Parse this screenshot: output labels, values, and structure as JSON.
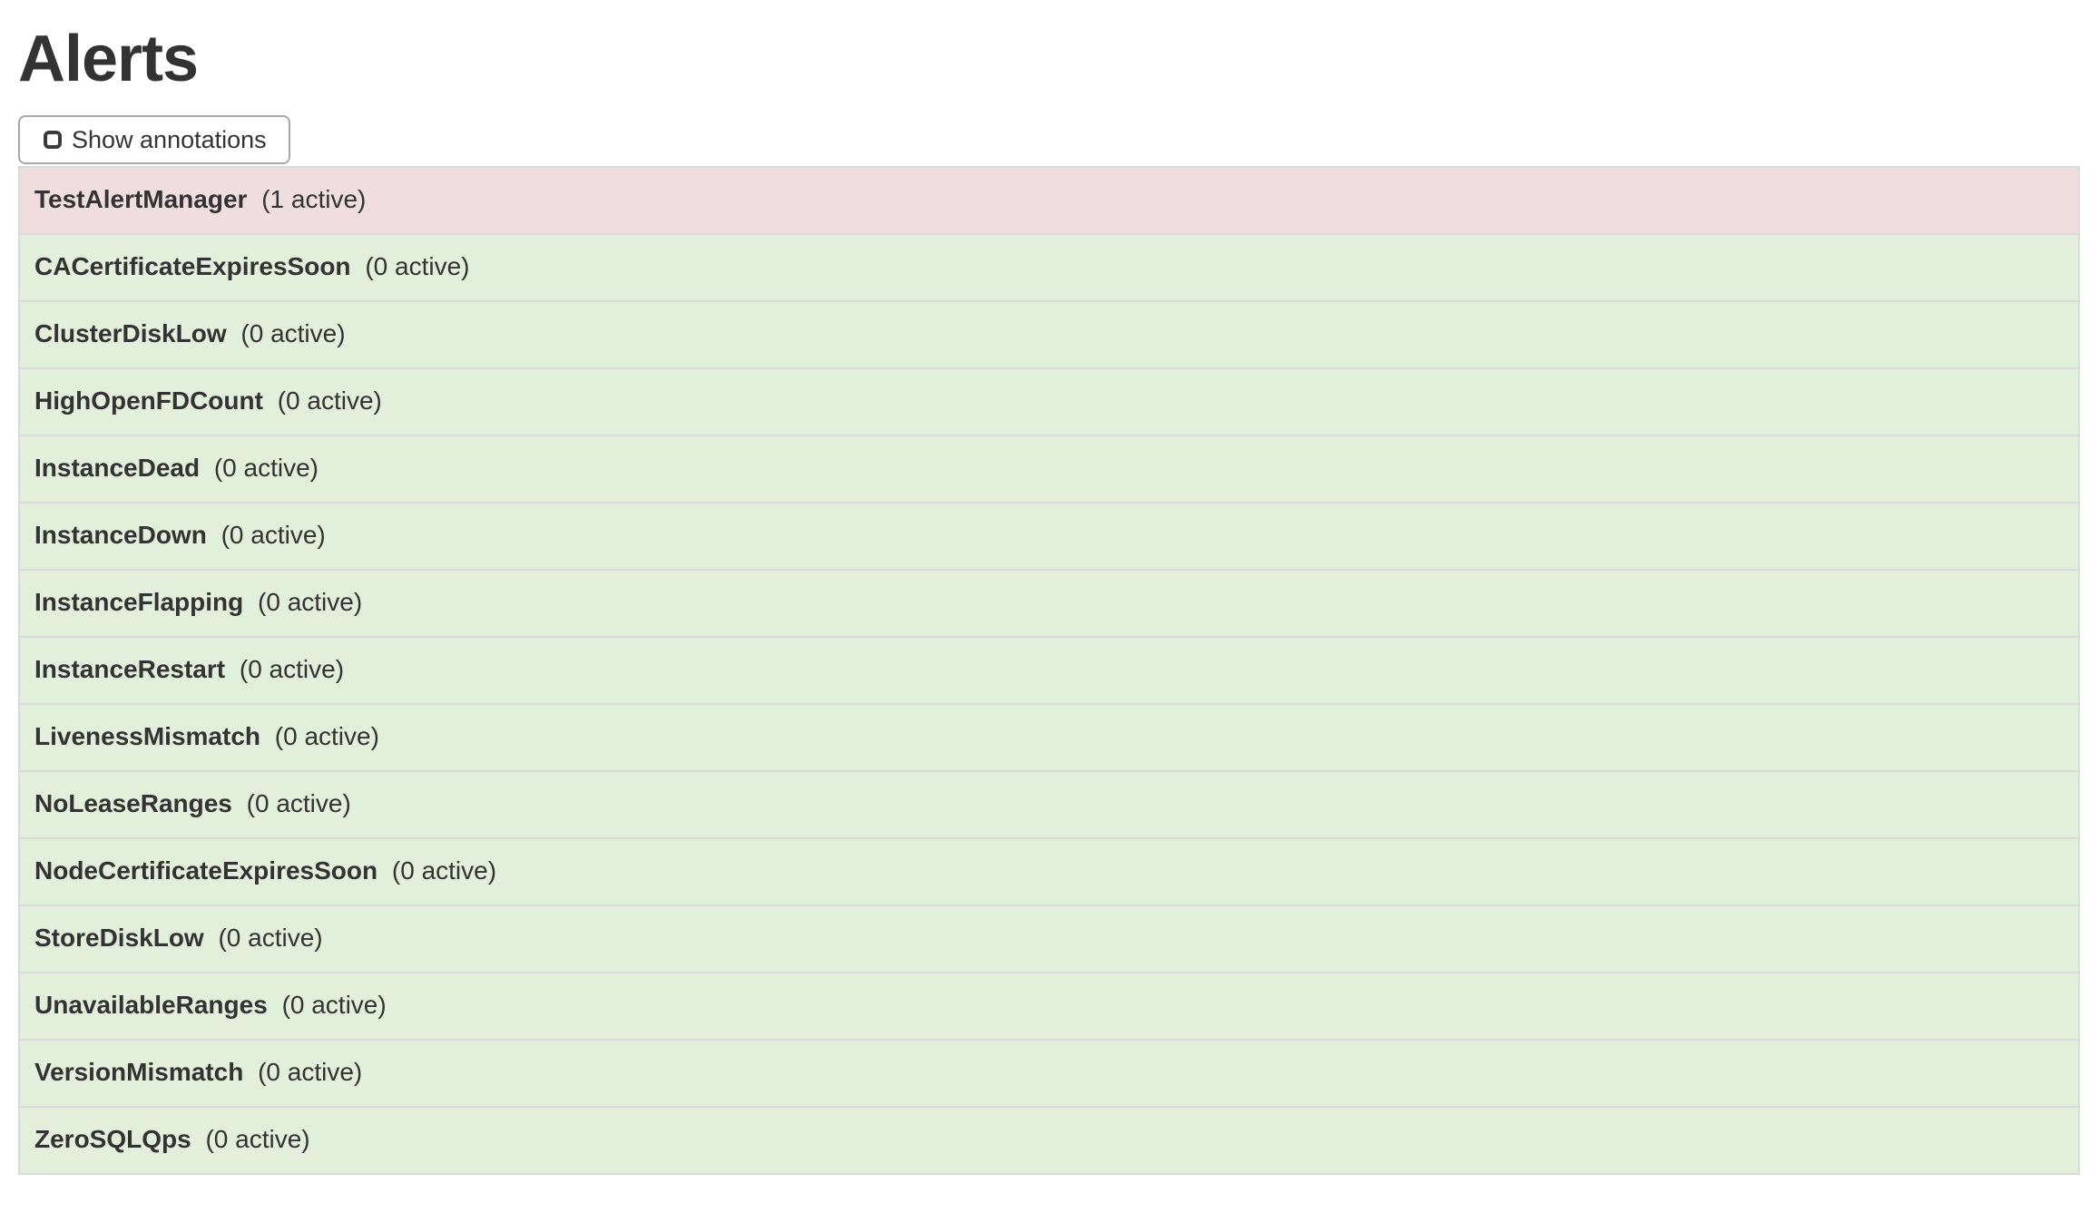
{
  "page": {
    "title": "Alerts"
  },
  "toolbar": {
    "show_annotations": {
      "label": "Show annotations",
      "checked": false,
      "icon": "checkbox-unchecked-icon"
    }
  },
  "alerts": [
    {
      "name": "TestAlertManager",
      "active_count": 1,
      "count_label": "(1 active)",
      "state": "firing"
    },
    {
      "name": "CACertificateExpiresSoon",
      "active_count": 0,
      "count_label": "(0 active)",
      "state": "inactive"
    },
    {
      "name": "ClusterDiskLow",
      "active_count": 0,
      "count_label": "(0 active)",
      "state": "inactive"
    },
    {
      "name": "HighOpenFDCount",
      "active_count": 0,
      "count_label": "(0 active)",
      "state": "inactive"
    },
    {
      "name": "InstanceDead",
      "active_count": 0,
      "count_label": "(0 active)",
      "state": "inactive"
    },
    {
      "name": "InstanceDown",
      "active_count": 0,
      "count_label": "(0 active)",
      "state": "inactive"
    },
    {
      "name": "InstanceFlapping",
      "active_count": 0,
      "count_label": "(0 active)",
      "state": "inactive"
    },
    {
      "name": "InstanceRestart",
      "active_count": 0,
      "count_label": "(0 active)",
      "state": "inactive"
    },
    {
      "name": "LivenessMismatch",
      "active_count": 0,
      "count_label": "(0 active)",
      "state": "inactive"
    },
    {
      "name": "NoLeaseRanges",
      "active_count": 0,
      "count_label": "(0 active)",
      "state": "inactive"
    },
    {
      "name": "NodeCertificateExpiresSoon",
      "active_count": 0,
      "count_label": "(0 active)",
      "state": "inactive"
    },
    {
      "name": "StoreDiskLow",
      "active_count": 0,
      "count_label": "(0 active)",
      "state": "inactive"
    },
    {
      "name": "UnavailableRanges",
      "active_count": 0,
      "count_label": "(0 active)",
      "state": "inactive"
    },
    {
      "name": "VersionMismatch",
      "active_count": 0,
      "count_label": "(0 active)",
      "state": "inactive"
    },
    {
      "name": "ZeroSQLQps",
      "active_count": 0,
      "count_label": "(0 active)",
      "state": "inactive"
    }
  ],
  "colors": {
    "firing_row_bg": "#f0dede",
    "inactive_row_bg": "#e2efda",
    "row_border": "#d9dadb",
    "text": "#333333",
    "button_border": "#a8a8a8"
  }
}
